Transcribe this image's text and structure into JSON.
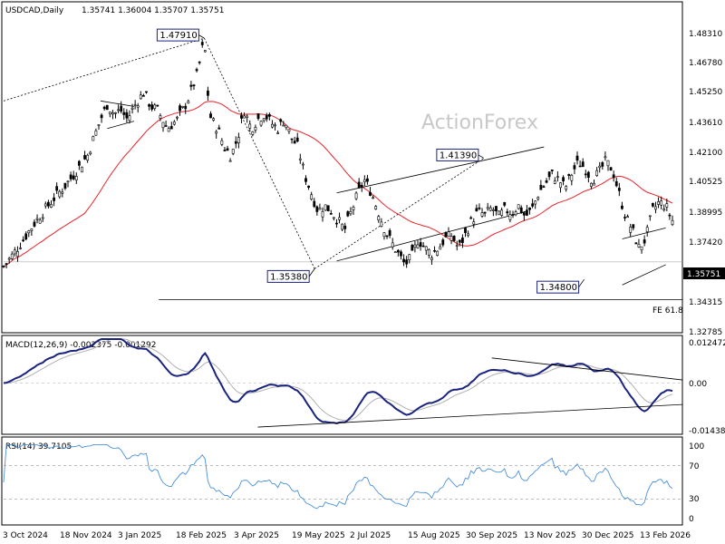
{
  "header": {
    "symbol": "USDCAD,Daily",
    "ohlc": "1.35741 1.36004 1.35707 1.35751"
  },
  "watermark": "ActionForex",
  "colors": {
    "candle": "#000000",
    "ma": "#e8242a",
    "macd": "#1a237e",
    "signal": "#b0b0b0",
    "rsi": "#4a90d9",
    "label_border": "#1a237e"
  },
  "chart_data": [
    {
      "type": "candlestick",
      "panel": "price",
      "y_ticks": [
        "1.48310",
        "1.46780",
        "1.45250",
        "1.43610",
        "1.42100",
        "1.40525",
        "1.38995",
        "1.37420",
        "1.35751",
        "1.34315",
        "1.32785"
      ],
      "x_ticks": [
        "3 Oct 2024",
        "18 Nov 2024",
        "3 Jan 2025",
        "18 Feb 2025",
        "3 Apr 2025",
        "19 May 2025",
        "2 Jul 2025",
        "15 Aug 2025",
        "30 Sep 2025",
        "13 Nov 2025",
        "30 Dec 2025",
        "13 Feb 2026"
      ],
      "ylim": [
        1.32,
        1.49
      ],
      "current_price": "1.35751",
      "annotations": [
        {
          "text": "1.47910",
          "value": 1.4791,
          "date_index": 0.3
        },
        {
          "text": "1.35380",
          "value": 1.3538,
          "date_index": 0.465
        },
        {
          "text": "1.41390",
          "value": 1.4139,
          "date_index": 0.718
        },
        {
          "text": "1.34800",
          "value": 1.348,
          "date_index": 0.868
        }
      ],
      "fe_label": "FE 61.8",
      "fe_value": 1.337,
      "close_path": [
        [
          0.0,
          1.355
        ],
        [
          0.015,
          1.362
        ],
        [
          0.03,
          1.37
        ],
        [
          0.045,
          1.378
        ],
        [
          0.06,
          1.385
        ],
        [
          0.075,
          1.392
        ],
        [
          0.09,
          1.398
        ],
        [
          0.105,
          1.405
        ],
        [
          0.115,
          1.41
        ],
        [
          0.125,
          1.415
        ],
        [
          0.135,
          1.425
        ],
        [
          0.145,
          1.435
        ],
        [
          0.155,
          1.443
        ],
        [
          0.165,
          1.438
        ],
        [
          0.175,
          1.44
        ],
        [
          0.185,
          1.435
        ],
        [
          0.195,
          1.442
        ],
        [
          0.21,
          1.45
        ],
        [
          0.22,
          1.442
        ],
        [
          0.23,
          1.44
        ],
        [
          0.245,
          1.43
        ],
        [
          0.26,
          1.435
        ],
        [
          0.275,
          1.445
        ],
        [
          0.29,
          1.46
        ],
        [
          0.3,
          1.4791
        ],
        [
          0.305,
          1.45
        ],
        [
          0.31,
          1.435
        ],
        [
          0.32,
          1.43
        ],
        [
          0.33,
          1.42
        ],
        [
          0.34,
          1.415
        ],
        [
          0.35,
          1.425
        ],
        [
          0.36,
          1.44
        ],
        [
          0.37,
          1.43
        ],
        [
          0.38,
          1.435
        ],
        [
          0.39,
          1.438
        ],
        [
          0.4,
          1.433
        ],
        [
          0.41,
          1.43
        ],
        [
          0.42,
          1.435
        ],
        [
          0.43,
          1.425
        ],
        [
          0.44,
          1.42
        ],
        [
          0.45,
          1.405
        ],
        [
          0.46,
          1.395
        ],
        [
          0.47,
          1.385
        ],
        [
          0.48,
          1.388
        ],
        [
          0.49,
          1.385
        ],
        [
          0.5,
          1.38
        ],
        [
          0.51,
          1.375
        ],
        [
          0.52,
          1.385
        ],
        [
          0.53,
          1.395
        ],
        [
          0.54,
          1.402
        ],
        [
          0.55,
          1.395
        ],
        [
          0.56,
          1.385
        ],
        [
          0.57,
          1.375
        ],
        [
          0.58,
          1.368
        ],
        [
          0.59,
          1.362
        ],
        [
          0.6,
          1.356
        ],
        [
          0.61,
          1.36
        ],
        [
          0.62,
          1.37
        ],
        [
          0.63,
          1.365
        ],
        [
          0.64,
          1.362
        ],
        [
          0.65,
          1.365
        ],
        [
          0.66,
          1.37
        ],
        [
          0.67,
          1.372
        ],
        [
          0.68,
          1.365
        ],
        [
          0.69,
          1.372
        ],
        [
          0.7,
          1.38
        ],
        [
          0.71,
          1.385
        ],
        [
          0.72,
          1.383
        ],
        [
          0.73,
          1.387
        ],
        [
          0.74,
          1.382
        ],
        [
          0.75,
          1.386
        ],
        [
          0.76,
          1.384
        ],
        [
          0.77,
          1.388
        ],
        [
          0.78,
          1.382
        ],
        [
          0.79,
          1.386
        ],
        [
          0.8,
          1.395
        ],
        [
          0.81,
          1.4
        ],
        [
          0.82,
          1.405
        ],
        [
          0.83,
          1.402
        ],
        [
          0.84,
          1.398
        ],
        [
          0.85,
          1.406
        ],
        [
          0.86,
          1.412
        ],
        [
          0.87,
          1.408
        ],
        [
          0.88,
          1.402
        ],
        [
          0.89,
          1.406
        ],
        [
          0.9,
          1.412
        ],
        [
          0.91,
          1.408
        ],
        [
          0.92,
          1.395
        ],
        [
          0.93,
          1.382
        ],
        [
          0.94,
          1.375
        ],
        [
          0.95,
          1.365
        ],
        [
          0.96,
          1.37
        ],
        [
          0.97,
          1.385
        ],
        [
          0.98,
          1.39
        ],
        [
          0.99,
          1.388
        ],
        [
          1.0,
          1.38
        ]
      ]
    },
    {
      "type": "line",
      "panel": "macd",
      "title": "MACD(12,26,9) -0.002375 -0.001292",
      "y_ticks": [
        "0.012472",
        "0.00",
        "-0.014389"
      ],
      "ylim": [
        -0.016,
        0.014
      ]
    },
    {
      "type": "line",
      "panel": "rsi",
      "title": "RSI(14) 39.7105",
      "y_ticks": [
        "100",
        "70",
        "30",
        "0"
      ],
      "ylim": [
        0,
        100
      ],
      "levels": [
        70,
        30
      ]
    }
  ]
}
